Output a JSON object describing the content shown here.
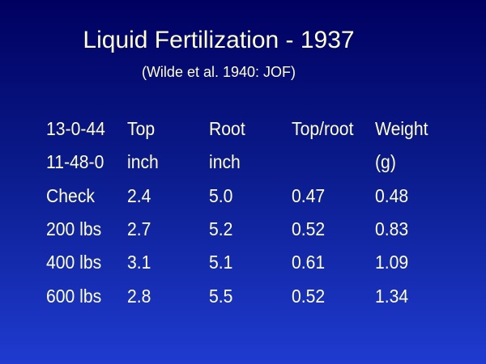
{
  "slide": {
    "title": "Liquid Fertilization - 1937",
    "subtitle": "(Wilde et al. 1940: JOF)",
    "table": {
      "header": [
        [
          "13-0-44",
          "Top",
          "Root",
          "Top/root",
          "Weight"
        ],
        [
          "11-48-0",
          "inch",
          "inch",
          null,
          "(g)"
        ]
      ],
      "rows": [
        [
          "Check",
          "2.4",
          "5.0",
          "0.47",
          "0.48"
        ],
        [
          "200 lbs",
          "2.7",
          "5.2",
          "0.52",
          "0.83"
        ],
        [
          "400 lbs",
          "3.1",
          "5.1",
          "0.61",
          "1.09"
        ],
        [
          "600 lbs",
          "2.8",
          "5.5",
          "0.52",
          "1.34"
        ]
      ]
    }
  }
}
